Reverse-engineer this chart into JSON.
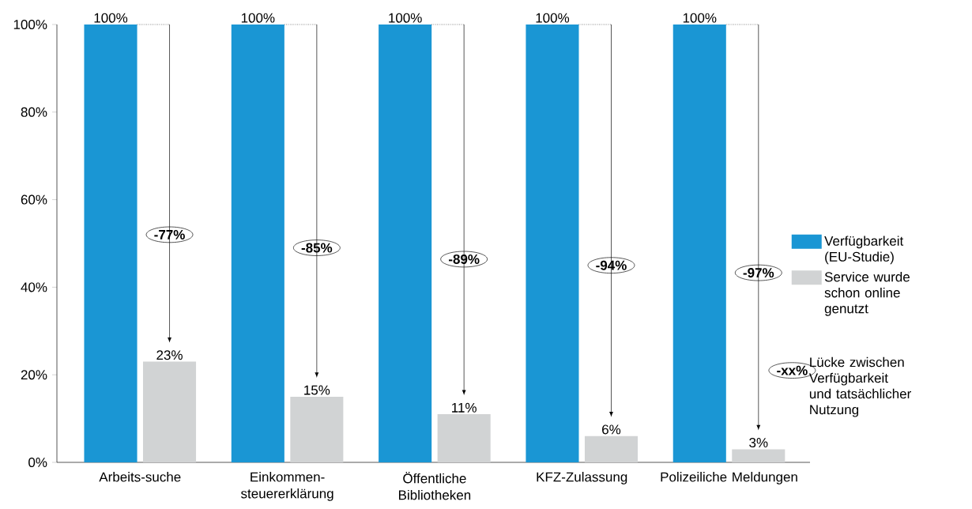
{
  "chart_data": {
    "type": "bar",
    "categories": [
      "Arbeits-suche",
      "Einkommen-steuererklärung",
      "Öffentliche Bibliotheken",
      "KFZ-Zulassung",
      "Polizeiliche Meldungen"
    ],
    "series": [
      {
        "name": "Verfügbarkeit (EU-Studie)",
        "color": "#1a96d4",
        "values": [
          100,
          100,
          100,
          100,
          100
        ],
        "value_labels": [
          "100%",
          "100%",
          "100%",
          "100%",
          "100%"
        ]
      },
      {
        "name": "Service wurde schon online genutzt",
        "color": "#d1d3d4",
        "values": [
          23,
          15,
          11,
          6,
          3
        ],
        "value_labels": [
          "23%",
          "15%",
          "11%",
          "6%",
          "3%"
        ]
      }
    ],
    "ylim": [
      0,
      100
    ],
    "yticks": [
      {
        "value": 0,
        "label": "0%"
      },
      {
        "value": 20,
        "label": "20%"
      },
      {
        "value": 40,
        "label": "40%"
      },
      {
        "value": 60,
        "label": "60%"
      },
      {
        "value": 80,
        "label": "80%"
      },
      {
        "value": 100,
        "label": "100%"
      }
    ],
    "annotations": [
      {
        "text": "-77%",
        "x": "Arbeits-suche",
        "y": 52
      },
      {
        "text": "-85%",
        "x": "Einkommen-steuererklärung",
        "y": 49
      },
      {
        "text": "-89%",
        "x": "Öffentliche Bibliotheken",
        "y": 46.4
      },
      {
        "text": "-94%",
        "x": "KFZ-Zulassung",
        "y": 45
      },
      {
        "text": "-97%",
        "x": "Polizeiliche Meldungen",
        "y": 43.3
      },
      "-xx%",
      "Lücke zwischen Verfügbarkeit und tatsächlicher Nutzung"
    ],
    "grid": false,
    "legend": "right"
  }
}
